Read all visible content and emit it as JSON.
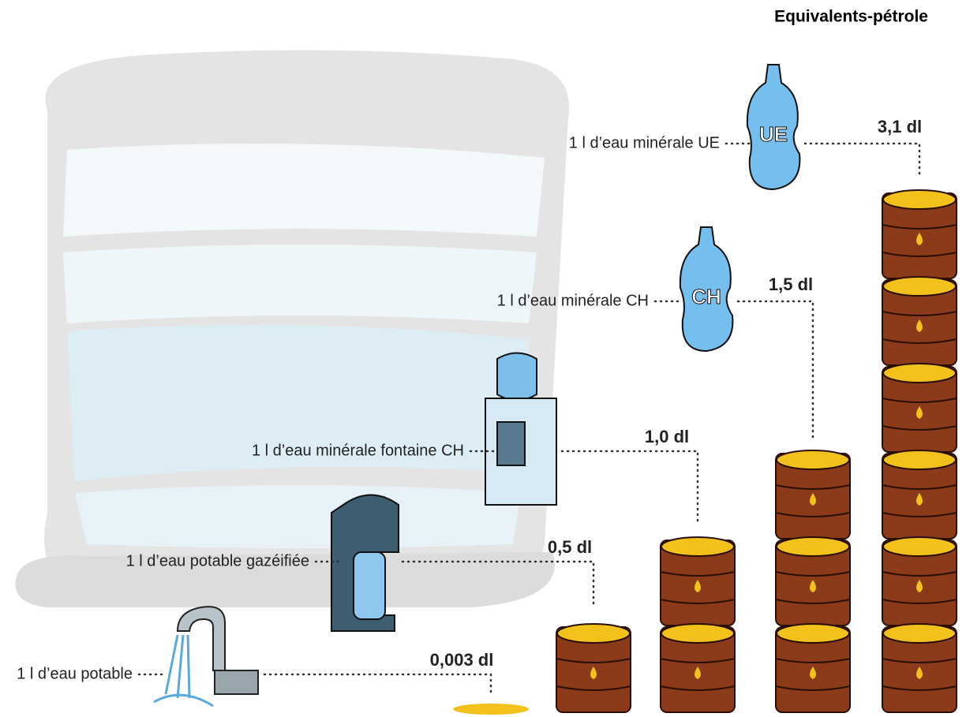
{
  "title": "Equivalents-pétrole",
  "items": [
    {
      "label": "1 l d’eau potable",
      "value": "0,003 dl"
    },
    {
      "label": "1 l d’eau potable gazéifiée",
      "value": "0,5 dl"
    },
    {
      "label": "1 l d’eau minérale fontaine CH",
      "value": "1,0 dl"
    },
    {
      "label": "1 l d’eau minérale CH",
      "value": "1,5 dl",
      "badge": "CH"
    },
    {
      "label": "1 l d’eau minérale UE",
      "value": "3,1 dl",
      "badge": "UE"
    }
  ]
}
